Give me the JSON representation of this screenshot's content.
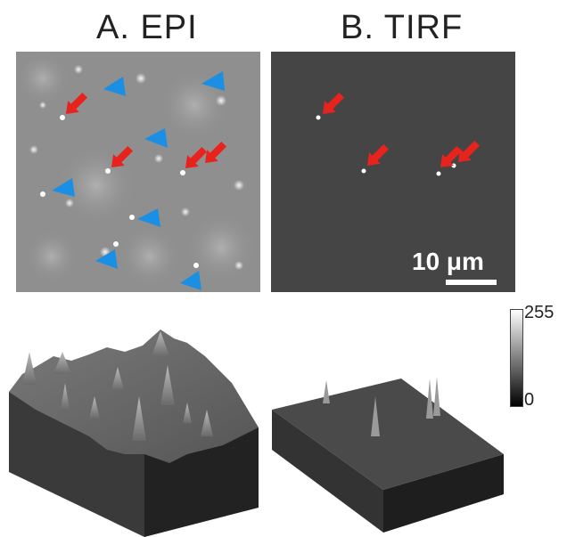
{
  "panels": {
    "a_title": "A. EPI",
    "b_title": "B. TIRF"
  },
  "scale_bar": {
    "label": "10 μm"
  },
  "colorbar": {
    "max_label": "255",
    "min_label": "0"
  },
  "colors": {
    "arrow": "#e8231d",
    "triangle": "#1a8fe3",
    "epi_background": "#8f8f8f",
    "tirf_background": "#454545"
  }
}
